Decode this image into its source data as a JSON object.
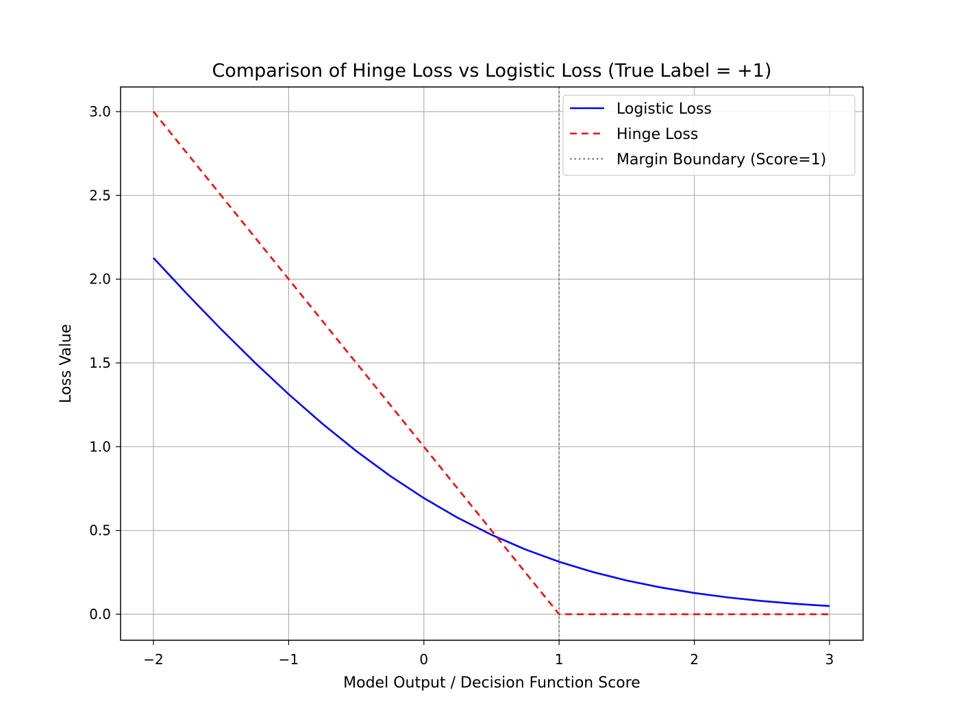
{
  "chart_data": {
    "type": "line",
    "title": "Comparison of Hinge Loss vs Logistic Loss (True Label = +1)",
    "xlabel": "Model Output / Decision Function Score",
    "ylabel": "Loss Value",
    "xlim": [
      -2.25,
      3.25
    ],
    "ylim": [
      -0.15,
      3.15
    ],
    "xticks": [
      -2,
      -1,
      0,
      1,
      2,
      3
    ],
    "xtick_labels": [
      "−2",
      "−1",
      "0",
      "1",
      "2",
      "3"
    ],
    "yticks": [
      0,
      0.5,
      1,
      1.5,
      2,
      2.5,
      3
    ],
    "ytick_labels": [
      "0.0",
      "0.5",
      "1.0",
      "1.5",
      "2.0",
      "2.5",
      "3.0"
    ],
    "grid": true,
    "legend_position": "top-right",
    "x": [
      -2,
      -1.75,
      -1.5,
      -1.25,
      -1,
      -0.75,
      -0.5,
      -0.25,
      0,
      0.25,
      0.5,
      0.75,
      1,
      1.25,
      1.5,
      1.75,
      2,
      2.25,
      2.5,
      2.75,
      3
    ],
    "series": [
      {
        "name": "Logistic Loss",
        "color": "#0000ff",
        "style": "solid",
        "values": [
          2.1269,
          1.9102,
          1.7014,
          1.5019,
          1.3133,
          1.1369,
          0.9741,
          0.8259,
          0.6931,
          0.5759,
          0.4741,
          0.3869,
          0.3133,
          0.2519,
          0.2014,
          0.1602,
          0.1269,
          0.1002,
          0.0789,
          0.062,
          0.0486
        ]
      },
      {
        "name": "Hinge Loss",
        "color": "#ff0000",
        "style": "dashed",
        "values": [
          3,
          2.75,
          2.5,
          2.25,
          2,
          1.75,
          1.5,
          1.25,
          1,
          0.75,
          0.5,
          0.25,
          0,
          0,
          0,
          0,
          0,
          0,
          0,
          0,
          0
        ]
      }
    ],
    "vlines": [
      {
        "name": "Margin Boundary (Score=1)",
        "x": 1,
        "color": "#808080",
        "style": "dotted"
      }
    ]
  }
}
